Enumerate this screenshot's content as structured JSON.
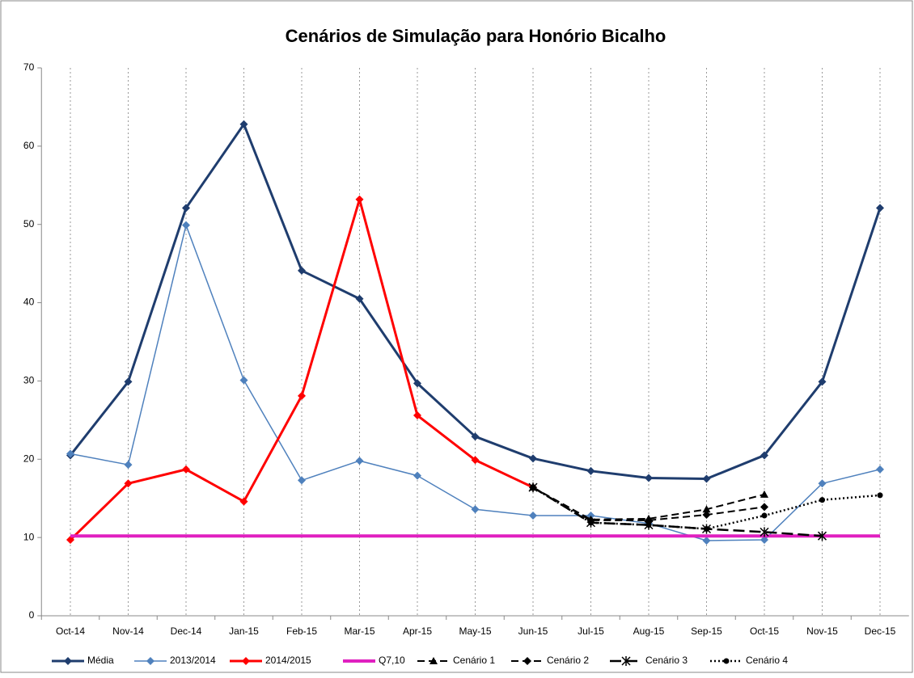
{
  "chart_data": {
    "type": "line",
    "title": "Cenários de Simulação para Honório Bicalho",
    "categories": [
      "Oct-14",
      "Nov-14",
      "Dec-14",
      "Jan-15",
      "Feb-15",
      "Mar-15",
      "Apr-15",
      "May-15",
      "Jun-15",
      "Jul-15",
      "Aug-15",
      "Sep-15",
      "Oct-15",
      "Nov-15",
      "Dec-15"
    ],
    "series": [
      {
        "name": "Média",
        "color": "#1f3d6e",
        "line_style": "solid",
        "marker": "diamond",
        "values": [
          20.5,
          29.9,
          52.1,
          62.8,
          44.1,
          40.5,
          29.7,
          22.9,
          20.1,
          18.5,
          17.6,
          17.5,
          20.5,
          29.9,
          52.1
        ]
      },
      {
        "name": "2013/2014",
        "color": "#4f81bd",
        "line_style": "solid",
        "marker": "diamond",
        "values": [
          20.7,
          19.3,
          49.9,
          30.1,
          17.3,
          19.8,
          17.9,
          13.6,
          12.8,
          12.8,
          11.8,
          9.6,
          9.7,
          16.9,
          18.7
        ]
      },
      {
        "name": "2014/2015",
        "color": "#ff0000",
        "line_style": "solid",
        "marker": "diamond",
        "values": [
          9.7,
          16.9,
          18.7,
          14.6,
          28.1,
          53.2,
          25.6,
          19.9,
          16.4,
          null,
          null,
          null,
          null,
          null,
          null
        ]
      },
      {
        "name": "Q7,10",
        "color": "#e020c0",
        "line_style": "solid",
        "marker": "none",
        "values": [
          10.2,
          10.2,
          10.2,
          10.2,
          10.2,
          10.2,
          10.2,
          10.2,
          10.2,
          10.2,
          10.2,
          10.2,
          10.2,
          10.2,
          10.2
        ]
      },
      {
        "name": "Cenário 1",
        "color": "#000000",
        "line_style": "dashed",
        "marker": "triangle",
        "values": [
          null,
          null,
          null,
          null,
          null,
          null,
          null,
          null,
          16.4,
          12.3,
          12.4,
          13.6,
          15.5,
          null,
          null
        ]
      },
      {
        "name": "Cenário 2",
        "color": "#000000",
        "line_style": "dashed",
        "marker": "diamond",
        "values": [
          null,
          null,
          null,
          null,
          null,
          null,
          null,
          null,
          16.4,
          12.2,
          12.2,
          12.9,
          13.9,
          null,
          null
        ]
      },
      {
        "name": "Cenário 3",
        "color": "#000000",
        "line_style": "longdash",
        "marker": "star",
        "values": [
          null,
          null,
          null,
          null,
          null,
          null,
          null,
          null,
          16.4,
          11.9,
          11.6,
          11.1,
          10.7,
          10.2,
          null
        ]
      },
      {
        "name": "Cenário 4",
        "color": "#000000",
        "line_style": "dotted",
        "marker": "circle",
        "values": [
          null,
          null,
          null,
          null,
          null,
          null,
          null,
          null,
          16.4,
          11.9,
          11.6,
          11.1,
          12.8,
          14.8,
          15.4
        ]
      }
    ],
    "ylim": [
      0,
      70
    ],
    "yticks": [
      0,
      10,
      20,
      30,
      40,
      50,
      60,
      70
    ],
    "grid": true,
    "legend": "bottom"
  }
}
